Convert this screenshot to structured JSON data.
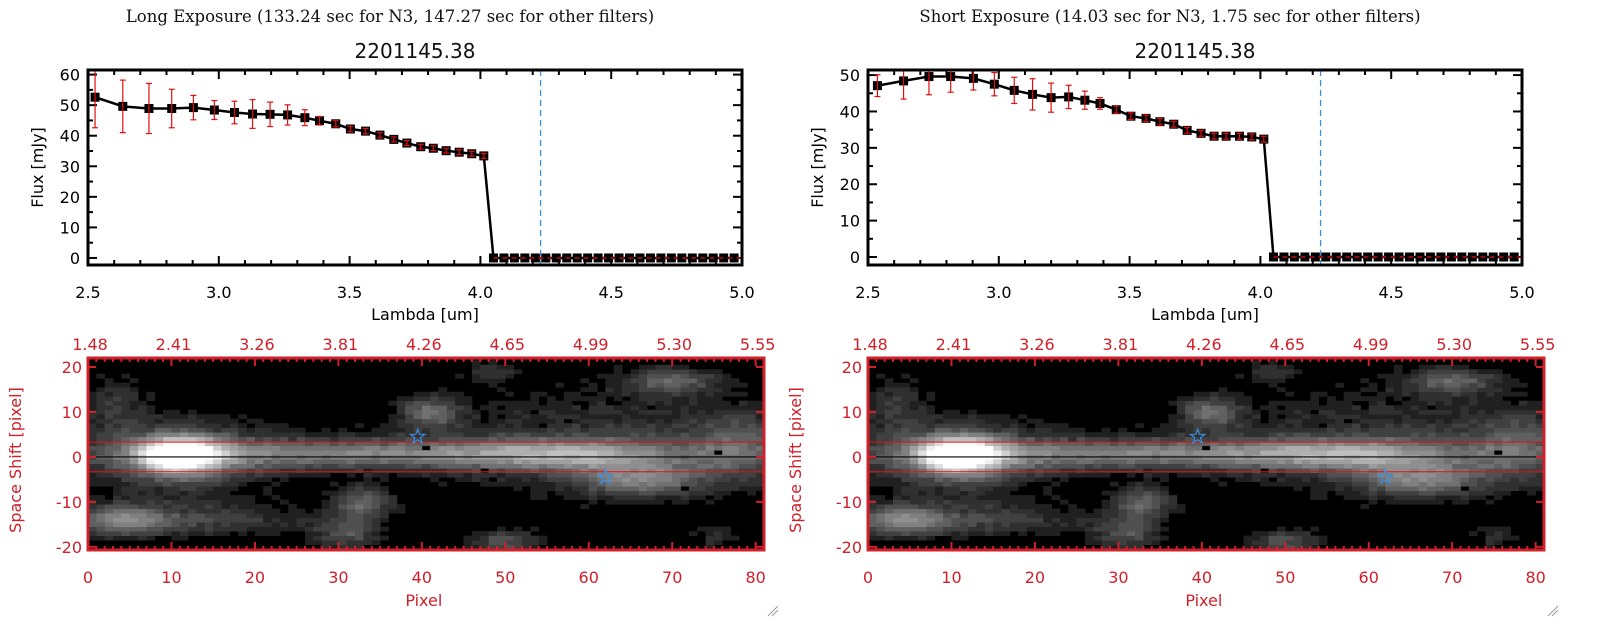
{
  "panels": [
    {
      "title": "Long Exposure (133.24 sec for N3, 147.27 sec for other filters)",
      "object_id": "2201145.38"
    },
    {
      "title": "Short Exposure (14.03 sec for N3, 1.75 sec for other filters)",
      "object_id": "2201145.38"
    }
  ],
  "colors": {
    "data": "#000000",
    "error": "#e01010",
    "marker_line": "#3a8fe0",
    "image_axes": "#d0202a",
    "aperture": "#e01010"
  },
  "chart_data": [
    {
      "type": "line",
      "panel": "Long Exposure",
      "title": "2201145.38",
      "xlabel": "Lambda [um]",
      "ylabel": "Flux [mJy]",
      "xlim": [
        2.5,
        5.0
      ],
      "ylim": [
        -2.3,
        61.5
      ],
      "xticks": [
        2.5,
        3.0,
        3.5,
        4.0,
        4.5,
        5.0
      ],
      "xtick_labels": [
        "2.5",
        "3.0",
        "3.5",
        "4.0",
        "4.5",
        "5.0"
      ],
      "yticks": [
        0,
        10,
        20,
        30,
        40,
        50,
        60
      ],
      "ytick_labels": [
        "0",
        "10",
        "20",
        "30",
        "40",
        "50",
        "60"
      ],
      "vline": 4.23,
      "x": [
        2.527,
        2.633,
        2.733,
        2.82,
        2.903,
        2.983,
        3.06,
        3.129,
        3.196,
        3.263,
        3.329,
        3.385,
        3.447,
        3.503,
        3.561,
        3.616,
        3.669,
        3.719,
        3.772,
        3.82,
        3.869,
        3.919,
        3.967,
        4.013,
        4.05,
        4.09,
        4.13,
        4.17,
        4.21,
        4.25,
        4.29,
        4.33,
        4.37,
        4.41,
        4.45,
        4.49,
        4.53,
        4.57,
        4.61,
        4.65,
        4.69,
        4.73,
        4.77,
        4.81,
        4.85,
        4.89,
        4.93,
        4.97
      ],
      "y": [
        52.6,
        49.6,
        48.9,
        48.9,
        49.2,
        48.4,
        47.6,
        47.1,
        47.0,
        46.8,
        45.9,
        44.9,
        43.9,
        42.2,
        41.5,
        40.2,
        38.8,
        37.6,
        36.4,
        35.9,
        35.1,
        34.6,
        34.1,
        33.4,
        0,
        0,
        0,
        0,
        0,
        0,
        0,
        0,
        0,
        0,
        0,
        0,
        0,
        0,
        0,
        0,
        0,
        0,
        0,
        0,
        0,
        0,
        0,
        0
      ],
      "yerr": [
        10,
        8.6,
        8.2,
        6.3,
        4,
        3.1,
        3.7,
        4.7,
        4,
        3.3,
        2.6,
        1.4,
        1,
        0.9,
        0.9,
        0.9,
        0.8,
        0.8,
        0.8,
        0.8,
        0.8,
        0.8,
        0.8,
        0.8,
        0,
        0,
        0,
        0,
        0,
        0,
        0,
        0,
        0,
        0,
        0,
        0,
        0,
        0,
        0,
        0,
        0,
        0,
        0,
        0,
        0,
        0,
        0,
        0
      ]
    },
    {
      "type": "line",
      "panel": "Short Exposure",
      "title": "2201145.38",
      "xlabel": "Lambda [um]",
      "ylabel": "Flux [mJy]",
      "xlim": [
        2.5,
        5.0
      ],
      "ylim": [
        -2.2,
        51.4
      ],
      "xticks": [
        2.5,
        3.0,
        3.5,
        4.0,
        4.5,
        5.0
      ],
      "xtick_labels": [
        "2.5",
        "3.0",
        "3.5",
        "4.0",
        "4.5",
        "5.0"
      ],
      "yticks": [
        0,
        10,
        20,
        30,
        40,
        50
      ],
      "ytick_labels": [
        "0",
        "10",
        "20",
        "30",
        "40",
        "50"
      ],
      "vline": 4.23,
      "x": [
        2.536,
        2.636,
        2.733,
        2.816,
        2.903,
        2.983,
        3.059,
        3.129,
        3.2,
        3.267,
        3.329,
        3.387,
        3.449,
        3.505,
        3.563,
        3.616,
        3.669,
        3.72,
        3.773,
        3.823,
        3.869,
        3.92,
        3.967,
        4.013,
        4.05,
        4.09,
        4.13,
        4.17,
        4.21,
        4.25,
        4.29,
        4.33,
        4.37,
        4.41,
        4.45,
        4.49,
        4.53,
        4.57,
        4.61,
        4.65,
        4.69,
        4.73,
        4.77,
        4.81,
        4.85,
        4.89,
        4.93,
        4.97
      ],
      "y": [
        47.1,
        48.4,
        49.6,
        49.6,
        49.1,
        47.5,
        45.8,
        44.7,
        43.8,
        44.0,
        43.1,
        42.2,
        40.5,
        38.7,
        38.1,
        37.2,
        36.5,
        34.8,
        34.0,
        33.2,
        33.2,
        33.2,
        33.0,
        32.4,
        0,
        0,
        0,
        0,
        0,
        0,
        0,
        0,
        0,
        0,
        0,
        0,
        0,
        0,
        0,
        0,
        0,
        0,
        0,
        0,
        0,
        0,
        0,
        0
      ],
      "yerr": [
        3,
        5,
        5,
        4.3,
        3.2,
        3.2,
        3.6,
        4.3,
        4,
        3.2,
        2.5,
        1.6,
        1,
        0.9,
        0.9,
        0.9,
        0.8,
        0.8,
        0.8,
        0.8,
        0.8,
        0.8,
        0.8,
        0.8,
        0,
        0,
        0,
        0,
        0,
        0,
        0,
        0,
        0,
        0,
        0,
        0,
        0,
        0,
        0,
        0,
        0,
        0,
        0,
        0,
        0,
        0,
        0,
        0
      ]
    },
    {
      "type": "heatmap",
      "panel": "Long Exposure",
      "xlabel": "Pixel",
      "ylabel": "Space Shift [pixel]",
      "xlim": [
        0,
        81
      ],
      "ylim": [
        -20.7,
        22
      ],
      "xticks": [
        0,
        10,
        20,
        30,
        40,
        50,
        60,
        70,
        80
      ],
      "xtick_labels": [
        "0",
        "10",
        "20",
        "30",
        "40",
        "50",
        "60",
        "70",
        "80"
      ],
      "top_tick_labels": [
        "1.48",
        "2.41",
        "3.26",
        "3.81",
        "4.26",
        "4.65",
        "4.99",
        "5.30",
        "5.55"
      ],
      "yticks": [
        -20,
        -10,
        0,
        10,
        20
      ],
      "ytick_labels": [
        "-20",
        "-10",
        "0",
        "10",
        "20"
      ],
      "aperture": [
        -3.3,
        3.3
      ],
      "center_line": 0,
      "stars": [
        [
          39.5,
          4.5
        ],
        [
          62,
          -4.5
        ]
      ],
      "sources": [
        [
          11,
          0.5,
          1.0,
          3,
          2.6
        ],
        [
          11,
          0,
          0.35,
          8,
          6
        ],
        [
          35,
          0.8,
          0.45,
          22,
          2.4
        ],
        [
          58,
          0.5,
          0.3,
          8,
          2.4
        ],
        [
          41,
          10,
          0.35,
          2.5,
          2.5
        ],
        [
          70,
          17,
          0.35,
          4,
          2
        ],
        [
          48,
          19,
          0.2,
          2,
          1.5
        ],
        [
          4,
          -14,
          0.45,
          3.5,
          2.5
        ],
        [
          14,
          -14,
          0.25,
          8,
          2.5
        ],
        [
          33,
          -10,
          0.35,
          2.5,
          2.5
        ],
        [
          31,
          -17,
          0.3,
          3,
          3
        ],
        [
          50,
          -19,
          0.3,
          3,
          2
        ],
        [
          66,
          -5,
          0.4,
          5,
          2.5
        ],
        [
          63,
          3,
          0.2,
          18,
          9
        ],
        [
          78,
          2,
          0.25,
          4,
          5
        ],
        [
          3,
          12,
          0.18,
          3,
          5
        ],
        [
          75,
          -18,
          0.15,
          2,
          2
        ]
      ],
      "dark_pixels": [
        [
          40,
          2
        ],
        [
          47,
          -3
        ],
        [
          54,
          7
        ],
        [
          57,
          8
        ],
        [
          75,
          1
        ],
        [
          71,
          -7
        ],
        [
          39,
          -7
        ],
        [
          43,
          -13
        ],
        [
          48,
          -8
        ]
      ]
    },
    {
      "type": "heatmap",
      "panel": "Short Exposure",
      "xlabel": "Pixel",
      "ylabel": "Space Shift [pixel]",
      "xlim": [
        0,
        81
      ],
      "ylim": [
        -20.7,
        22
      ],
      "xticks": [
        0,
        10,
        20,
        30,
        40,
        50,
        60,
        70,
        80
      ],
      "xtick_labels": [
        "0",
        "10",
        "20",
        "30",
        "40",
        "50",
        "60",
        "70",
        "80"
      ],
      "top_tick_labels": [
        "1.48",
        "2.41",
        "3.26",
        "3.81",
        "4.26",
        "4.65",
        "4.99",
        "5.30",
        "5.55"
      ],
      "yticks": [
        -20,
        -10,
        0,
        10,
        20
      ],
      "ytick_labels": [
        "-20",
        "-10",
        "0",
        "10",
        "20"
      ],
      "aperture": [
        -3.3,
        3.3
      ],
      "center_line": 0,
      "stars": [
        [
          39.5,
          4.5
        ],
        [
          62,
          -4.5
        ]
      ],
      "sources": [
        [
          11,
          0.5,
          1.0,
          3,
          2.6
        ],
        [
          11,
          0,
          0.35,
          8,
          6
        ],
        [
          35,
          0.8,
          0.45,
          22,
          2.4
        ],
        [
          58,
          0.5,
          0.3,
          8,
          2.4
        ],
        [
          41,
          10,
          0.35,
          2.5,
          2.5
        ],
        [
          70,
          17,
          0.35,
          4,
          2
        ],
        [
          48,
          19,
          0.2,
          2,
          1.5
        ],
        [
          4,
          -14,
          0.45,
          3.5,
          2.5
        ],
        [
          14,
          -14,
          0.25,
          8,
          2.5
        ],
        [
          33,
          -10,
          0.35,
          2.5,
          2.5
        ],
        [
          31,
          -17,
          0.3,
          3,
          3
        ],
        [
          50,
          -19,
          0.3,
          3,
          2
        ],
        [
          66,
          -5,
          0.4,
          5,
          2.5
        ],
        [
          63,
          3,
          0.2,
          18,
          9
        ],
        [
          78,
          2,
          0.25,
          4,
          5
        ],
        [
          3,
          12,
          0.18,
          3,
          5
        ],
        [
          75,
          -18,
          0.15,
          2,
          2
        ]
      ],
      "dark_pixels": [
        [
          40,
          2
        ],
        [
          47,
          -3
        ],
        [
          54,
          7
        ],
        [
          57,
          8
        ],
        [
          75,
          1
        ],
        [
          71,
          -7
        ],
        [
          39,
          -7
        ],
        [
          43,
          -13
        ],
        [
          48,
          -8
        ]
      ]
    }
  ]
}
